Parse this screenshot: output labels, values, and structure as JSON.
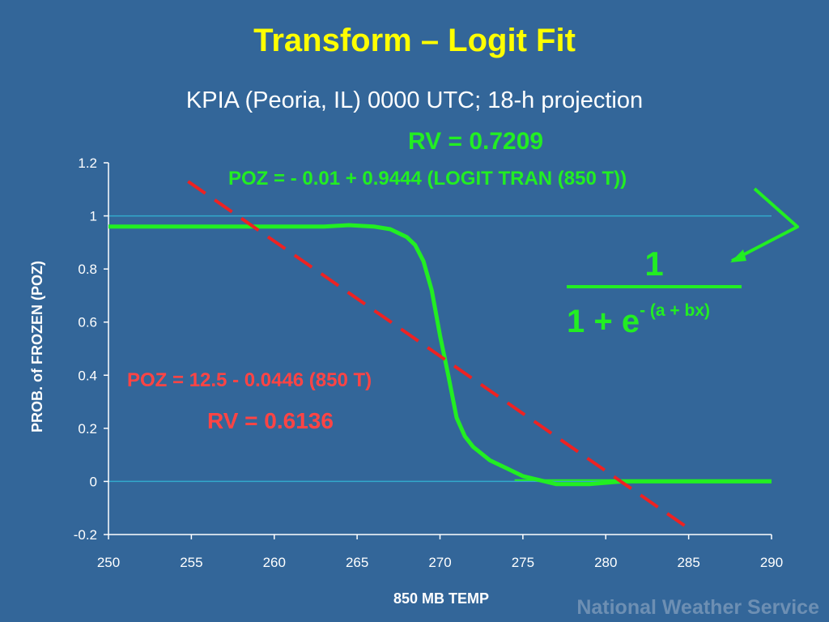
{
  "header": {
    "title": "Transform – Logit Fit",
    "subtitle": "KPIA (Peoria, IL)   0000 UTC; 18-h projection"
  },
  "annotations": {
    "rv_logit": "RV = 0.7209",
    "eq_logit": "POZ = - 0.01 + 0.9444 (LOGIT TRAN (850 T))",
    "eq_linear": "POZ = 12.5 - 0.0446 (850 T)",
    "rv_linear": "RV = 0.6136",
    "formula_numerator": "1",
    "formula_base": "1 + e",
    "formula_exponent": "- (a + bx)"
  },
  "footer": {
    "brand": "National Weather Service"
  },
  "colors": {
    "background": "#336699",
    "title": "#ffff00",
    "logit": "#22ee22",
    "linear": "#ee2222",
    "reference_line": "#33aacc",
    "axis": "#ffffff"
  },
  "chart_data": {
    "type": "line",
    "xlabel": "850 MB TEMP",
    "ylabel": "PROB. of FROZEN (POZ)",
    "xlim": [
      250,
      290
    ],
    "ylim": [
      -0.2,
      1.2
    ],
    "xticks": [
      250,
      255,
      260,
      265,
      270,
      275,
      280,
      285,
      290
    ],
    "yticks": [
      1.2,
      1,
      0.8,
      0.6,
      0.4,
      0.2,
      0,
      -0.2
    ],
    "ytick_labels": [
      "1.2",
      "1",
      "0.8",
      "0.6",
      "0.4",
      "0.2",
      "0",
      "-0.2"
    ],
    "reference_lines": [
      1,
      0
    ],
    "grid": false,
    "series": [
      {
        "style": "solid",
        "x": [
          250,
          255,
          260,
          263,
          264.5,
          266,
          267,
          268,
          268.5,
          269,
          269.5,
          270,
          270.5,
          271,
          271.5,
          272,
          273,
          274,
          275,
          277,
          279,
          281,
          285,
          290
        ],
        "y": [
          0.96,
          0.96,
          0.96,
          0.96,
          0.965,
          0.96,
          0.95,
          0.92,
          0.89,
          0.83,
          0.72,
          0.55,
          0.4,
          0.24,
          0.17,
          0.13,
          0.08,
          0.05,
          0.02,
          -0.01,
          -0.01,
          0.0,
          0.0,
          0.0
        ]
      },
      {
        "style": "dashed",
        "x": [
          254.8,
          285.3
        ],
        "y": [
          1.13,
          -0.19
        ]
      }
    ]
  }
}
